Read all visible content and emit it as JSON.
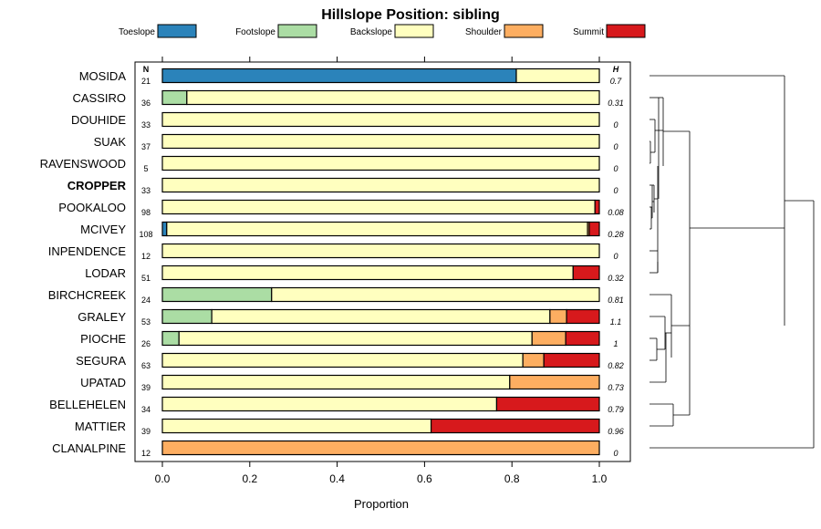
{
  "chart_data": {
    "type": "bar",
    "stacked": true,
    "orientation": "horizontal",
    "title": "Hillslope Position: sibling",
    "xlabel": "Proportion",
    "ylabel": "",
    "xlim": [
      0,
      1
    ],
    "x_ticks": [
      "0.0",
      "0.2",
      "0.4",
      "0.6",
      "0.8",
      "1.0"
    ],
    "n_header": "N",
    "h_header": "H",
    "legend": {
      "placement": "top",
      "entries": [
        {
          "name": "Toeslope",
          "color": "#2b83ba"
        },
        {
          "name": "Footslope",
          "color": "#abdda4"
        },
        {
          "name": "Backslope",
          "color": "#ffffbf"
        },
        {
          "name": "Shoulder",
          "color": "#fdae61"
        },
        {
          "name": "Summit",
          "color": "#d7191c"
        }
      ]
    },
    "highlight": "CROPPER",
    "rows": [
      {
        "name": "MOSIDA",
        "n": "21",
        "h": "0.7",
        "values": [
          0.81,
          0,
          0.19,
          0,
          0
        ]
      },
      {
        "name": "CASSIRO",
        "n": "36",
        "h": "0.31",
        "values": [
          0,
          0.056,
          0.944,
          0,
          0
        ]
      },
      {
        "name": "DOUHIDE",
        "n": "33",
        "h": "0",
        "values": [
          0,
          0,
          1,
          0,
          0
        ]
      },
      {
        "name": "SUAK",
        "n": "37",
        "h": "0",
        "values": [
          0,
          0,
          1,
          0,
          0
        ]
      },
      {
        "name": "RAVENSWOOD",
        "n": "5",
        "h": "0",
        "values": [
          0,
          0,
          1,
          0,
          0
        ]
      },
      {
        "name": "CROPPER",
        "n": "33",
        "h": "0",
        "values": [
          0,
          0,
          1,
          0,
          0
        ]
      },
      {
        "name": "POOKALOO",
        "n": "98",
        "h": "0.08",
        "values": [
          0,
          0,
          0.99,
          0,
          0.01
        ]
      },
      {
        "name": "MCIVEY",
        "n": "108",
        "h": "0.28",
        "values": [
          0.01,
          0,
          0.963,
          0.004,
          0.023
        ]
      },
      {
        "name": "INPENDENCE",
        "n": "12",
        "h": "0",
        "values": [
          0,
          0,
          1,
          0,
          0
        ]
      },
      {
        "name": "LODAR",
        "n": "51",
        "h": "0.32",
        "values": [
          0,
          0,
          0.94,
          0,
          0.06
        ]
      },
      {
        "name": "BIRCHCREEK",
        "n": "24",
        "h": "0.81",
        "values": [
          0,
          0.25,
          0.75,
          0,
          0
        ]
      },
      {
        "name": "GRALEY",
        "n": "53",
        "h": "1.1",
        "values": [
          0,
          0.113,
          0.774,
          0.038,
          0.075
        ]
      },
      {
        "name": "PIOCHE",
        "n": "26",
        "h": "1",
        "values": [
          0,
          0.038,
          0.808,
          0.077,
          0.077
        ]
      },
      {
        "name": "SEGURA",
        "n": "63",
        "h": "0.82",
        "values": [
          0,
          0,
          0.825,
          0.048,
          0.127
        ]
      },
      {
        "name": "UPATAD",
        "n": "39",
        "h": "0.73",
        "values": [
          0,
          0,
          0.795,
          0.205,
          0
        ]
      },
      {
        "name": "BELLEHELEN",
        "n": "34",
        "h": "0.79",
        "values": [
          0,
          0,
          0.765,
          0,
          0.235
        ]
      },
      {
        "name": "MATTIER",
        "n": "39",
        "h": "0.96",
        "values": [
          0,
          0,
          0.615,
          0,
          0.385
        ]
      },
      {
        "name": "CLANALPINE",
        "n": "12",
        "h": "0",
        "values": [
          0,
          0,
          0,
          1,
          0
        ]
      }
    ]
  }
}
